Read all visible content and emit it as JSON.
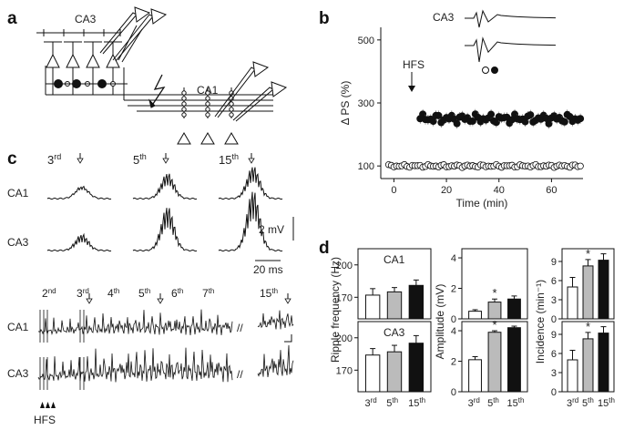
{
  "panels": {
    "a": "a",
    "b": "b",
    "c": "c",
    "d": "d"
  },
  "panel_a": {
    "ca3_label": "CA3",
    "ca1_label": "CA1"
  },
  "panel_b": {
    "inset_label": "CA3",
    "hfs_label": "HFS",
    "chart_data": {
      "type": "scatter",
      "xlabel": "Time (min)",
      "ylabel": "Δ PS (%)",
      "xlim": [
        -5,
        72
      ],
      "ylim": [
        60,
        540
      ],
      "xticks": [
        0,
        20,
        40,
        60
      ],
      "yticks": [
        100,
        300,
        500
      ],
      "series": [
        {
          "marker": "filled",
          "start": 10,
          "end": 71,
          "step": 1,
          "mean": 250,
          "amp": 16,
          "err": 16
        },
        {
          "marker": "open",
          "start": -2,
          "end": 71,
          "step": 1,
          "mean": 100,
          "amp": 5,
          "err": 6
        }
      ],
      "hfs_time": 11
    }
  },
  "panel_c": {
    "top_labels": [
      "3",
      "5",
      "15"
    ],
    "top_sups": [
      "rd",
      "th",
      "th"
    ],
    "rows": [
      "CA1",
      "CA3"
    ],
    "scale_mv": "2 mV",
    "scale_ms": "20 ms",
    "bottom_labels": [
      "2",
      "3",
      "4",
      "5",
      "6",
      "7",
      "15"
    ],
    "bottom_sups": [
      "nd",
      "rd",
      "th",
      "th",
      "th",
      "th",
      "th"
    ],
    "break_mark": "//",
    "hfs_label": "HFS"
  },
  "panel_d": {
    "charts": [
      {
        "type": "bar",
        "title": "CA1",
        "categories": [
          "3rd",
          "5th",
          "15th"
        ],
        "values": [
          172,
          175,
          181
        ],
        "errors": [
          6,
          4,
          5
        ],
        "ylim": [
          150,
          215
        ],
        "yticks": [
          170,
          200
        ],
        "significant": [
          false,
          false,
          false
        ]
      },
      {
        "type": "bar",
        "title": "CA3",
        "categories": [
          "3rd",
          "5th",
          "15th"
        ],
        "values": [
          184,
          187,
          195
        ],
        "errors": [
          6,
          6,
          7
        ],
        "ylim": [
          150,
          215
        ],
        "yticks": [
          170,
          200
        ],
        "significant": [
          false,
          false,
          false
        ]
      },
      {
        "type": "bar",
        "categories": [
          "3rd",
          "5th",
          "15th"
        ],
        "values": [
          0.5,
          1.1,
          1.3
        ],
        "errors": [
          0.1,
          0.2,
          0.2
        ],
        "ylim": [
          0,
          4.6
        ],
        "yticks": [
          0,
          2,
          4
        ],
        "significant": [
          false,
          true,
          false
        ]
      },
      {
        "type": "bar",
        "categories": [
          "3rd",
          "5th",
          "15th"
        ],
        "values": [
          2.1,
          3.9,
          4.2
        ],
        "errors": [
          0.2,
          0.1,
          0.1
        ],
        "ylim": [
          0,
          4.6
        ],
        "yticks": [
          0,
          2,
          4
        ],
        "significant": [
          false,
          true,
          false
        ]
      },
      {
        "type": "bar",
        "categories": [
          "3rd",
          "5th",
          "15th"
        ],
        "values": [
          5,
          8.3,
          9.2
        ],
        "errors": [
          1.5,
          1.0,
          1.0
        ],
        "ylim": [
          0,
          11
        ],
        "yticks": [
          0,
          3,
          6,
          9
        ],
        "significant": [
          false,
          true,
          false
        ]
      },
      {
        "type": "bar",
        "categories": [
          "3rd",
          "5th",
          "15th"
        ],
        "values": [
          5,
          8.3,
          9.2
        ],
        "errors": [
          1.5,
          1.0,
          1.0
        ],
        "ylim": [
          0,
          11
        ],
        "yticks": [
          0,
          3,
          6,
          9
        ],
        "significant": [
          false,
          true,
          false
        ]
      }
    ],
    "ylabels": [
      "Ripple frequency (Hz)",
      "Amplitude (mV)",
      "Incidence (min⁻¹)"
    ],
    "xlabels": [
      "3",
      "5",
      "15"
    ],
    "xsups": [
      "rd",
      "th",
      "th"
    ],
    "star": "*"
  }
}
